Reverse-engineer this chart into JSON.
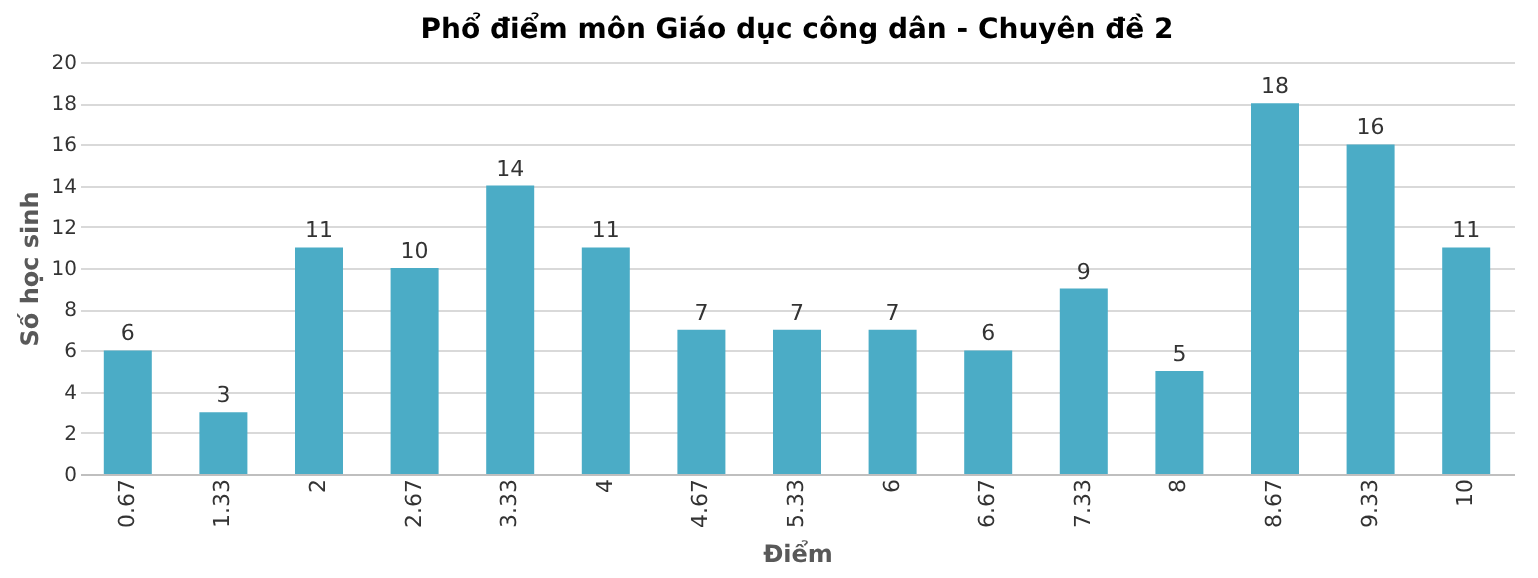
{
  "chart_data": {
    "type": "bar",
    "title": "Phổ điểm môn Giáo dục công dân - Chuyên đề 2",
    "xlabel": "Điểm",
    "ylabel": "Số học sinh",
    "categories": [
      "0.67",
      "1.33",
      "2",
      "2.67",
      "3.33",
      "4",
      "4.67",
      "5.33",
      "6",
      "6.67",
      "7.33",
      "8",
      "8.67",
      "9.33",
      "10"
    ],
    "values": [
      6,
      3,
      11,
      10,
      14,
      11,
      7,
      7,
      7,
      6,
      9,
      5,
      18,
      16,
      11
    ],
    "color": "#4bacc6",
    "ylim": [
      0,
      20
    ],
    "yticks": [
      0,
      2,
      4,
      6,
      8,
      10,
      12,
      14,
      16,
      18,
      20
    ],
    "grid": "y",
    "data_labels": true
  }
}
